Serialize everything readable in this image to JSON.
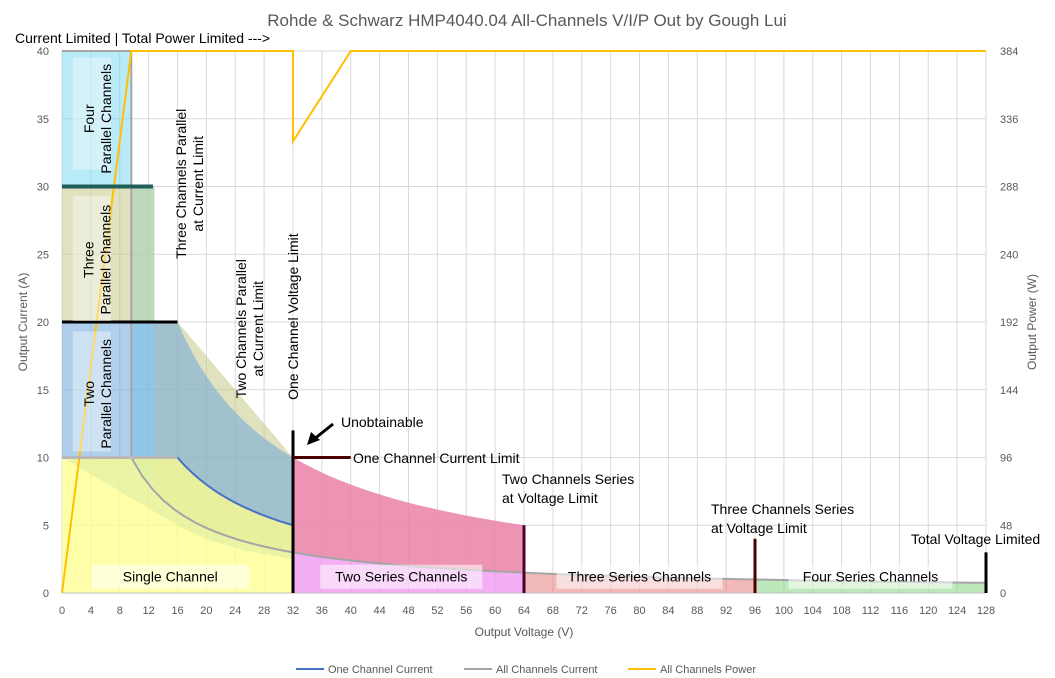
{
  "chart_data": {
    "type": "area",
    "title": "Rohde & Schwarz HMP4040.04 All-Channels V/I/P Out by Gough Lui",
    "xlabel": "Output Voltage (V)",
    "ylabel": "Output Current (A)",
    "y2label": "Output Power (W)",
    "xlim": [
      0,
      128
    ],
    "ylim": [
      0,
      40
    ],
    "y2lim": [
      0,
      384
    ],
    "x_ticks": [
      "0",
      "4",
      "8",
      "12",
      "16",
      "20",
      "24",
      "28",
      "32",
      "36",
      "40",
      "44",
      "48",
      "52",
      "56",
      "60",
      "64",
      "68",
      "72",
      "76",
      "80",
      "84",
      "88",
      "92",
      "96",
      "100",
      "104",
      "108",
      "112",
      "116",
      "120",
      "124",
      "128"
    ],
    "y_ticks": [
      "0",
      "5",
      "10",
      "15",
      "20",
      "25",
      "30",
      "35",
      "40"
    ],
    "y2_ticks": [
      "0",
      "48",
      "96",
      "144",
      "192",
      "240",
      "288",
      "336",
      "384"
    ],
    "grid": true,
    "legend_position": "bottom",
    "series": [
      {
        "name": "One Channel Current",
        "color": "#4472C4",
        "axis": "left",
        "x": [
          0,
          16,
          18,
          20,
          22,
          24,
          26,
          28,
          30,
          32
        ],
        "y": [
          10,
          10,
          8.89,
          8,
          7.27,
          6.67,
          6.15,
          5.71,
          5.33,
          5
        ]
      },
      {
        "name": "All Channels Current",
        "color": "#A5A5A5",
        "axis": "left",
        "x": [
          0,
          9.6,
          10,
          11,
          12,
          14,
          16,
          18,
          20,
          24,
          28,
          32,
          36,
          40,
          48,
          56,
          64,
          72,
          80,
          88,
          96,
          104,
          112,
          120,
          128
        ],
        "y": [
          40,
          40,
          38.4,
          34.91,
          32,
          27.43,
          24,
          21.33,
          19.2,
          16,
          13.71,
          12,
          10.67,
          9.6,
          8,
          6.86,
          6,
          5.33,
          4.8,
          4.36,
          4,
          3.69,
          3.43,
          3.2,
          3
        ]
      },
      {
        "name": "All Channels Power",
        "color": "#FFC000",
        "axis": "right",
        "x": [
          0,
          9.6,
          32,
          32,
          40,
          128
        ],
        "y": [
          0,
          384,
          384,
          320,
          384,
          384
        ]
      }
    ],
    "regions": [
      {
        "label": "Single Channel",
        "color": "#FFFF8C",
        "v_min": 0,
        "v_max": 32,
        "max_current": 10
      },
      {
        "label": "Two Series Channels",
        "color": "#EE82EE",
        "v_min": 32,
        "v_max": 64,
        "max_current": 5
      },
      {
        "label": "Three Series Channels",
        "color": "#E88080",
        "v_min": 64,
        "v_max": 96,
        "max_current": 5
      },
      {
        "label": "Four Series Channels",
        "color": "#90D890",
        "v_min": 96,
        "v_max": 128,
        "max_current": 4
      },
      {
        "label": "Two Parallel Channels",
        "color": "#6FA8DC",
        "max_current": 20
      },
      {
        "label": "Three Parallel Channels",
        "color": "#C5C88A",
        "max_current": 30
      },
      {
        "label": "Four Parallel Channels",
        "color": "#7FD8F0",
        "max_current": 40
      }
    ],
    "annotations": {
      "top_left": "Current Limited | Total Power Limited --->",
      "four_parallel": [
        "Four",
        "Parallel Channels"
      ],
      "three_parallel": [
        "Three",
        "Parallel Channels"
      ],
      "two_parallel": [
        "Two",
        "Parallel Channels"
      ],
      "three_ch_parallel_limit": [
        "Three Channels Parallel",
        "at Current Limit"
      ],
      "two_ch_parallel_limit": [
        "Two Channels Parallel",
        "at Current Limit"
      ],
      "one_ch_voltage_limit": "One Channel Voltage Limit",
      "unobtainable": "Unobtainable",
      "one_ch_current_limit": "One Channel Current Limit",
      "two_ch_series_limit": [
        "Two Channels Series",
        "at Voltage Limit"
      ],
      "three_ch_series_limit": [
        "Three Channels Series",
        "at Voltage Limit"
      ],
      "total_voltage_limited": "Total Voltage Limited"
    }
  }
}
